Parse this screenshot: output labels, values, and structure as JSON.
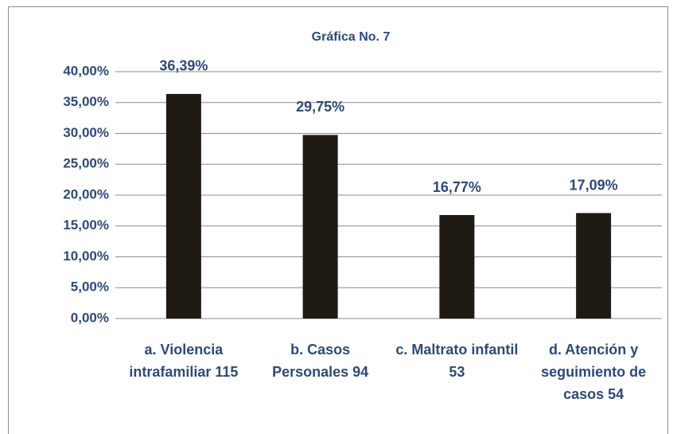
{
  "chart_data": {
    "type": "bar",
    "title": "Gráfica No. 7",
    "categories": [
      "a. Violencia intrafamiliar 115",
      "b. Casos Personales 94",
      "c. Maltrato infantil 53",
      "d. Atención y seguimiento de casos 54"
    ],
    "values": [
      36.39,
      29.75,
      16.77,
      17.09
    ],
    "value_labels": [
      "36,39%",
      "29,75%",
      "16,77%",
      "17,09%"
    ],
    "color": "#1f1a13",
    "ylim": [
      0,
      40
    ],
    "yticks": [
      {
        "value": 0,
        "label": "0,00%"
      },
      {
        "value": 5,
        "label": "5,00%"
      },
      {
        "value": 10,
        "label": "10,00%"
      },
      {
        "value": 15,
        "label": "15,00%"
      },
      {
        "value": 20,
        "label": "20,00%"
      },
      {
        "value": 25,
        "label": "25,00%"
      },
      {
        "value": 30,
        "label": "30,00%"
      },
      {
        "value": 35,
        "label": "35,00%"
      },
      {
        "value": 40,
        "label": "40,00%"
      }
    ],
    "grid": true
  }
}
